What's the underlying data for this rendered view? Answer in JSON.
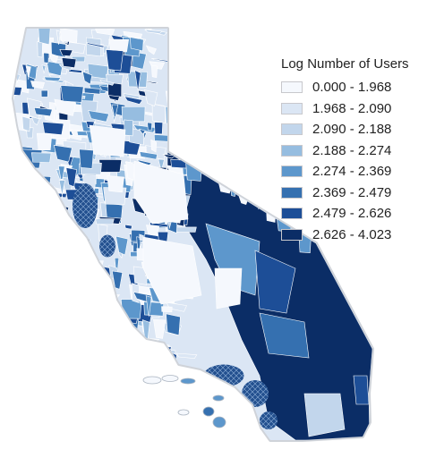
{
  "map": {
    "legend": {
      "title": "Log Number of Users",
      "bins": [
        {
          "label": "0.000 - 1.968",
          "color": "#f5f8fd"
        },
        {
          "label": "1.968 - 2.090",
          "color": "#dbe6f4"
        },
        {
          "label": "2.090 - 2.188",
          "color": "#c2d6ec"
        },
        {
          "label": "2.188 - 2.274",
          "color": "#96bde0"
        },
        {
          "label": "2.274 - 2.369",
          "color": "#5d97cc"
        },
        {
          "label": "2.369 - 2.479",
          "color": "#3570b0"
        },
        {
          "label": "2.479 - 2.626",
          "color": "#1d4e97"
        },
        {
          "label": "2.626 - 4.023",
          "color": "#0b2d66"
        }
      ]
    }
  }
}
